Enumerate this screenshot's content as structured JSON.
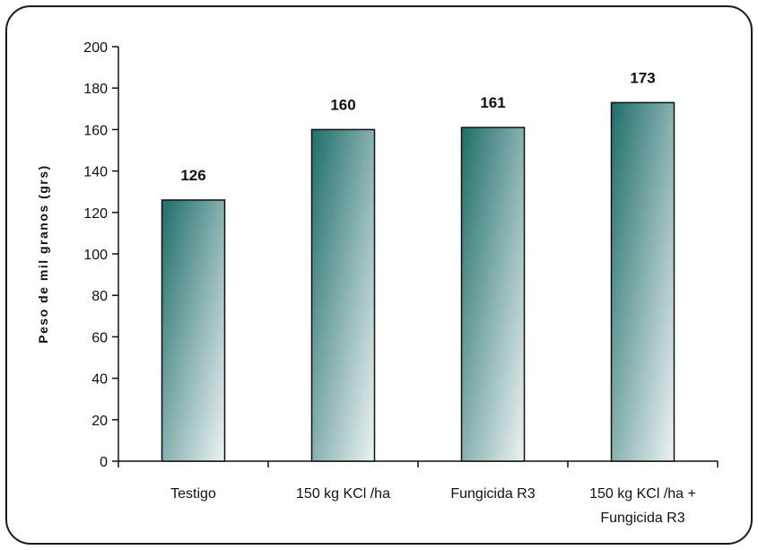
{
  "chart_data": {
    "type": "bar",
    "categories": [
      "Testigo",
      "150 kg KCl /ha",
      "Fungicida R3",
      "150 kg KCl /ha + Fungicida R3"
    ],
    "category_lines": [
      [
        "Testigo"
      ],
      [
        "150 kg KCl /ha"
      ],
      [
        "Fungicida R3"
      ],
      [
        "150 kg KCl /ha +",
        "Fungicida R3"
      ]
    ],
    "values": [
      126,
      160,
      161,
      173
    ],
    "data_labels": [
      "126",
      "160",
      "161",
      "173"
    ],
    "ylabel": "Peso de mil granos (grs)",
    "xlabel": "",
    "ylim": [
      0,
      200
    ],
    "yticks": [
      0,
      20,
      40,
      60,
      80,
      100,
      120,
      140,
      160,
      180,
      200
    ],
    "grid": false,
    "legend": "none",
    "colors": {
      "bar_dark": "#1f6e6a",
      "bar_light": "#eef3f3",
      "outline": "#111111"
    }
  }
}
